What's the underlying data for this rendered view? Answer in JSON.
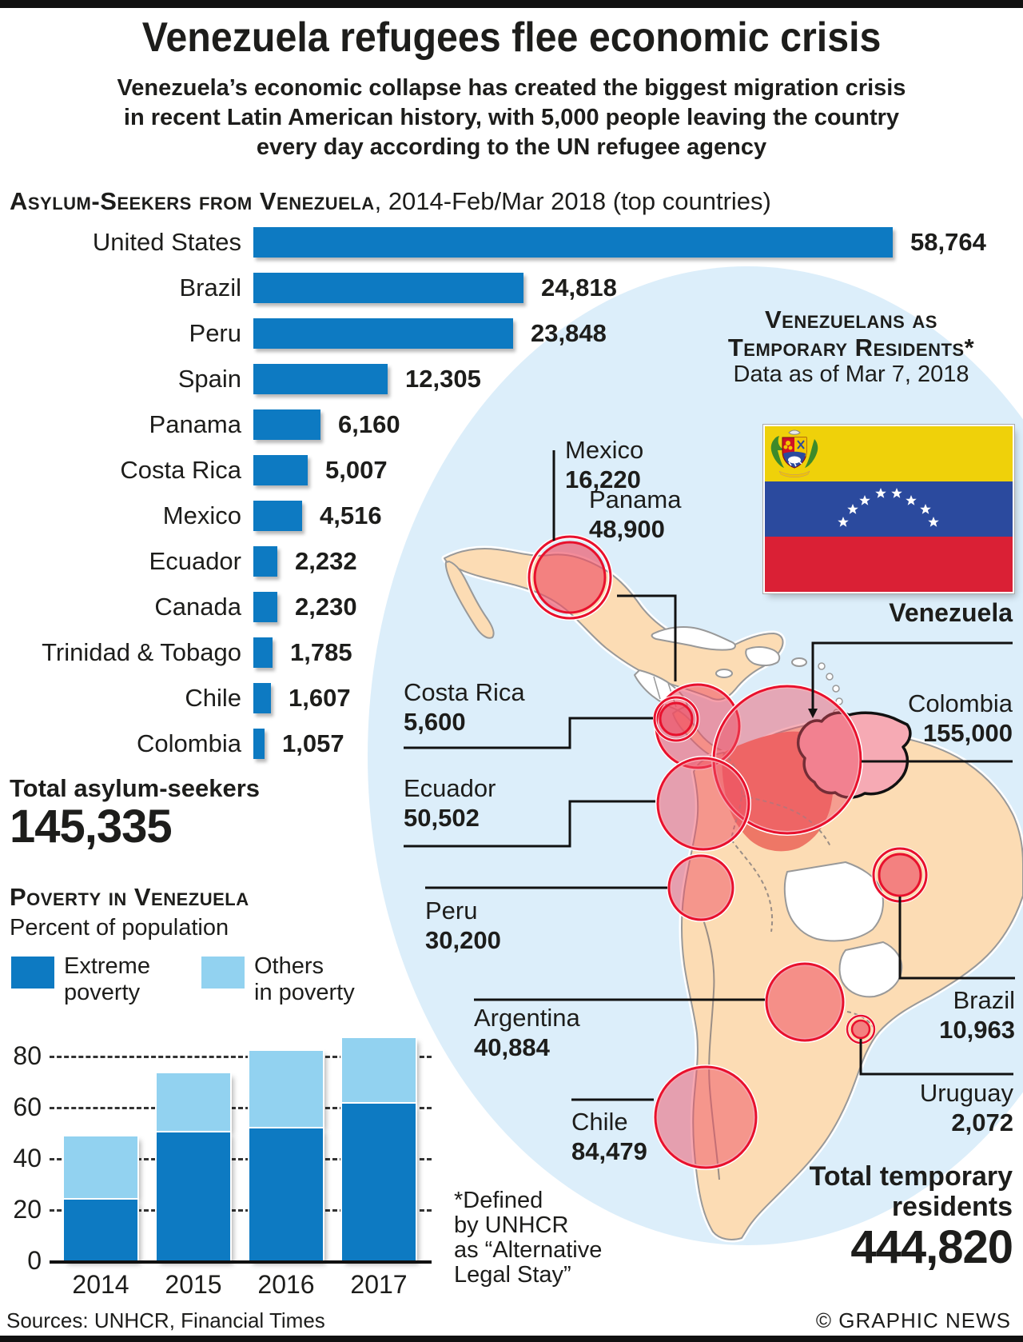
{
  "header": {
    "title": "Venezuela refugees flee economic crisis",
    "subtitle": "Venezuela’s economic collapse has created the biggest migration crisis\nin recent Latin American history, with 5,000 people leaving the country\nevery day according to the UN refugee agency"
  },
  "asylum_chart": {
    "heading_smallcaps": "Asylum-Seekers from Venezuela",
    "heading_rest": ", 2014-Feb/Mar 2018 (top countries)",
    "rows": [
      {
        "label": "United States",
        "value": "58,764"
      },
      {
        "label": "Brazil",
        "value": "24,818"
      },
      {
        "label": "Peru",
        "value": "23,848"
      },
      {
        "label": "Spain",
        "value": "12,305"
      },
      {
        "label": "Panama",
        "value": "6,160"
      },
      {
        "label": "Costa Rica",
        "value": "5,007"
      },
      {
        "label": "Mexico",
        "value": "4,516"
      },
      {
        "label": "Ecuador",
        "value": "2,232"
      },
      {
        "label": "Canada",
        "value": "2,230"
      },
      {
        "label": "Trinidad & Tobago",
        "value": "1,785"
      },
      {
        "label": "Chile",
        "value": "1,607"
      },
      {
        "label": "Colombia",
        "value": "1,057"
      }
    ],
    "total_label": "Total asylum-seekers",
    "total_value": "145,335"
  },
  "poverty": {
    "title": "Poverty in Venezuela",
    "subtitle": "Percent of population",
    "legend": [
      {
        "label": "Extreme\npoverty",
        "color": "#0d7ac2"
      },
      {
        "label": "Others\nin poverty",
        "color": "#92d2f0"
      }
    ],
    "y_ticks": [
      "0",
      "20",
      "40",
      "60",
      "80"
    ],
    "years": [
      "2014",
      "2015",
      "2016",
      "2017"
    ]
  },
  "map": {
    "title_line1": "Venezuelans as",
    "title_line2": "Temporary Residents*",
    "subtitle": "Data as of Mar 7, 2018",
    "venezuela_label": "Venezuela",
    "countries": [
      {
        "id": "mexico",
        "name": "Mexico",
        "value": "16,220"
      },
      {
        "id": "panama",
        "name": "Panama",
        "value": "48,900"
      },
      {
        "id": "costarica",
        "name": "Costa Rica",
        "value": "5,600"
      },
      {
        "id": "ecuador",
        "name": "Ecuador",
        "value": "50,502"
      },
      {
        "id": "peru",
        "name": "Peru",
        "value": "30,200"
      },
      {
        "id": "argentina",
        "name": "Argentina",
        "value": "40,884"
      },
      {
        "id": "chile",
        "name": "Chile",
        "value": "84,479"
      },
      {
        "id": "colombia",
        "name": "Colombia",
        "value": "155,000"
      },
      {
        "id": "brazil",
        "name": "Brazil",
        "value": "10,963"
      },
      {
        "id": "uruguay",
        "name": "Uruguay",
        "value": "2,072"
      }
    ],
    "total_line1": "Total temporary",
    "total_line2": "residents",
    "total_value": "444,820",
    "footnote": "*Defined\nby UNHCR\nas “Alternative\nLegal Stay”"
  },
  "footer": {
    "sources": "Sources: UNHCR, Financial Times",
    "credit": "© GRAPHIC NEWS"
  },
  "colors": {
    "bar_blue": "#0d7ac2",
    "light_blue": "#92d2f0",
    "map_ocean": "#dceefa",
    "map_land": "#fcdcb4",
    "bubble_red": "#e8112d",
    "flag_yellow": "#efd10a",
    "flag_blue": "#2b4a9e",
    "flag_red": "#da2035"
  },
  "chart_data": [
    {
      "type": "bar",
      "orientation": "horizontal",
      "title": "Asylum-Seekers from Venezuela, 2014-Feb/Mar 2018 (top countries)",
      "categories": [
        "United States",
        "Brazil",
        "Peru",
        "Spain",
        "Panama",
        "Costa Rica",
        "Mexico",
        "Ecuador",
        "Canada",
        "Trinidad & Tobago",
        "Chile",
        "Colombia"
      ],
      "values": [
        58764,
        24818,
        23848,
        12305,
        6160,
        5007,
        4516,
        2232,
        2230,
        1785,
        1607,
        1057
      ],
      "total_label": "Total asylum-seekers",
      "total": 145335,
      "xlabel": "",
      "ylabel": ""
    },
    {
      "type": "bar",
      "stacked": true,
      "title": "Poverty in Venezuela",
      "ylabel": "Percent of population",
      "categories": [
        "2014",
        "2015",
        "2016",
        "2017"
      ],
      "series": [
        {
          "name": "Extreme poverty",
          "values": [
            23.6,
            49.9,
            51.5,
            61.2
          ]
        },
        {
          "name": "Others in poverty",
          "values": [
            24.8,
            23.1,
            30.3,
            25.8
          ]
        }
      ],
      "stacked_totals": [
        48.4,
        73.0,
        81.8,
        87.0
      ],
      "ylim": [
        0,
        88
      ],
      "y_ticks": [
        0,
        20,
        40,
        60,
        80
      ],
      "grid": true,
      "legend_position": "top"
    },
    {
      "type": "map-bubbles",
      "title": "Venezuelans as Temporary Residents",
      "subtitle": "Data as of Mar 7, 2018",
      "points": [
        {
          "name": "Mexico",
          "value": 16220
        },
        {
          "name": "Panama",
          "value": 48900
        },
        {
          "name": "Costa Rica",
          "value": 5600
        },
        {
          "name": "Ecuador",
          "value": 50502
        },
        {
          "name": "Peru",
          "value": 30200
        },
        {
          "name": "Argentina",
          "value": 40884
        },
        {
          "name": "Chile",
          "value": 84479
        },
        {
          "name": "Colombia",
          "value": 155000
        },
        {
          "name": "Brazil",
          "value": 10963
        },
        {
          "name": "Uruguay",
          "value": 2072
        }
      ],
      "total_label": "Total temporary residents",
      "total": 444820
    }
  ]
}
